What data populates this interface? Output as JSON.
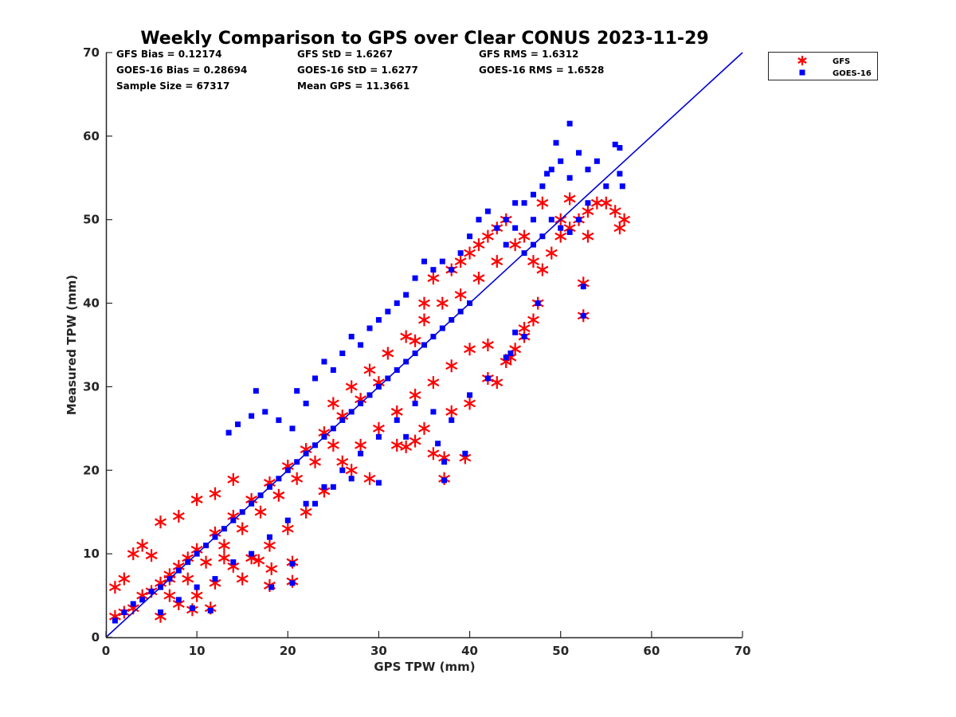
{
  "chart_data": {
    "type": "scatter",
    "title": "Weekly Comparison to GPS over Clear CONUS 2023-11-29",
    "xlabel": "GPS TPW (mm)",
    "ylabel": "Measured TPW (mm)",
    "xlim": [
      0,
      70
    ],
    "ylim": [
      0,
      70
    ],
    "xticks": [
      0,
      10,
      20,
      30,
      40,
      50,
      60,
      70
    ],
    "yticks": [
      0,
      10,
      20,
      30,
      40,
      50,
      60,
      70
    ],
    "grid": false,
    "legend_position": "outside-top-right",
    "stats": [
      [
        "GFS Bias = 0.12174",
        "GFS StD = 1.6267",
        "GFS RMS = 1.6312"
      ],
      [
        "GOES-16 Bias = 0.28694",
        "GOES-16 StD = 1.6277",
        "GOES-16 RMS = 1.6528"
      ],
      [
        "Sample Size = 67317",
        "Mean GPS = 11.3661",
        ""
      ]
    ],
    "reference_line": {
      "x": [
        0,
        70
      ],
      "y": [
        0,
        70
      ],
      "color": "#0000d8"
    },
    "series": [
      {
        "name": "GFS",
        "marker": "asterisk",
        "color": "#ff0000",
        "points": [
          [
            1,
            2.5
          ],
          [
            2,
            3
          ],
          [
            3,
            3.5
          ],
          [
            4,
            5
          ],
          [
            5,
            5.5
          ],
          [
            6,
            6.5
          ],
          [
            7,
            7.5
          ],
          [
            8,
            8.5
          ],
          [
            9,
            9.5
          ],
          [
            10,
            10.5
          ],
          [
            12,
            12.5
          ],
          [
            14,
            14.5
          ],
          [
            16,
            16.5
          ],
          [
            18,
            18.5
          ],
          [
            20,
            20.5
          ],
          [
            22,
            22.5
          ],
          [
            24,
            24.5
          ],
          [
            26,
            26.5
          ],
          [
            28,
            28.5
          ],
          [
            30,
            30.5
          ],
          [
            5,
            9.8
          ],
          [
            6,
            13.8
          ],
          [
            8,
            14.5
          ],
          [
            10,
            16.5
          ],
          [
            12,
            17.2
          ],
          [
            14,
            18.9
          ],
          [
            3,
            10
          ],
          [
            4,
            11
          ],
          [
            2,
            7
          ],
          [
            1,
            6
          ],
          [
            6,
            2.5
          ],
          [
            8,
            4
          ],
          [
            10,
            5
          ],
          [
            12,
            6.5
          ],
          [
            14,
            8.5
          ],
          [
            16,
            9.5
          ],
          [
            18,
            11
          ],
          [
            20,
            13
          ],
          [
            22,
            15
          ],
          [
            24,
            17.5
          ],
          [
            9.5,
            3.3
          ],
          [
            11.5,
            3.5
          ],
          [
            15,
            7
          ],
          [
            18,
            6.2
          ],
          [
            20.5,
            6.7
          ],
          [
            18.2,
            8.2
          ],
          [
            16.8,
            9.2
          ],
          [
            20.5,
            9
          ],
          [
            13,
            9.5
          ],
          [
            7,
            7
          ],
          [
            26,
            21
          ],
          [
            28,
            23
          ],
          [
            30,
            25
          ],
          [
            32,
            27
          ],
          [
            34,
            29
          ],
          [
            36,
            30.5
          ],
          [
            38,
            32.5
          ],
          [
            40,
            34.5
          ],
          [
            42,
            35
          ],
          [
            43,
            30.5
          ],
          [
            32,
            23
          ],
          [
            34,
            23.5
          ],
          [
            36,
            22
          ],
          [
            37.2,
            21.5
          ],
          [
            39.5,
            21.5
          ],
          [
            37.2,
            19
          ],
          [
            27,
            20
          ],
          [
            29,
            19
          ],
          [
            33,
            22.8
          ],
          [
            35,
            25
          ],
          [
            38,
            27
          ],
          [
            40,
            28
          ],
          [
            42,
            31
          ],
          [
            44,
            33
          ],
          [
            45,
            34.5
          ],
          [
            46,
            36
          ],
          [
            47,
            38
          ],
          [
            47.5,
            40
          ],
          [
            46,
            37
          ],
          [
            44.5,
            33.5
          ],
          [
            34,
            35.5
          ],
          [
            35,
            40
          ],
          [
            36,
            43
          ],
          [
            38,
            44
          ],
          [
            39,
            45
          ],
          [
            40,
            46
          ],
          [
            41,
            47
          ],
          [
            42,
            48
          ],
          [
            43,
            49
          ],
          [
            44,
            50
          ],
          [
            45,
            47
          ],
          [
            46,
            48
          ],
          [
            47,
            45
          ],
          [
            48,
            44
          ],
          [
            49,
            46
          ],
          [
            50,
            48
          ],
          [
            51,
            49
          ],
          [
            52,
            50
          ],
          [
            53,
            51
          ],
          [
            54,
            52
          ],
          [
            55,
            52
          ],
          [
            56,
            51
          ],
          [
            56.5,
            49
          ],
          [
            57,
            50
          ],
          [
            53,
            48
          ],
          [
            51,
            52.5
          ],
          [
            52.5,
            42.4
          ],
          [
            52.5,
            38.5
          ],
          [
            48,
            52
          ],
          [
            50,
            50
          ],
          [
            25,
            28
          ],
          [
            27,
            30
          ],
          [
            29,
            32
          ],
          [
            31,
            34
          ],
          [
            33,
            36
          ],
          [
            35,
            38
          ],
          [
            37,
            40
          ],
          [
            39,
            41
          ],
          [
            41,
            43
          ],
          [
            43,
            45
          ],
          [
            21,
            19
          ],
          [
            23,
            21
          ],
          [
            25,
            23
          ],
          [
            19,
            17
          ],
          [
            17,
            15
          ],
          [
            15,
            13
          ],
          [
            13,
            11
          ],
          [
            11,
            9
          ],
          [
            9,
            7
          ],
          [
            7,
            5
          ]
        ]
      },
      {
        "name": "GOES-16",
        "marker": "square",
        "color": "#0000ff",
        "points": [
          [
            1,
            2
          ],
          [
            2,
            3
          ],
          [
            3,
            4
          ],
          [
            4,
            4.5
          ],
          [
            5,
            5.5
          ],
          [
            6,
            6
          ],
          [
            7,
            7
          ],
          [
            8,
            8
          ],
          [
            9,
            9
          ],
          [
            10,
            10
          ],
          [
            11,
            11
          ],
          [
            12,
            12
          ],
          [
            13,
            13
          ],
          [
            14,
            14
          ],
          [
            15,
            15
          ],
          [
            16,
            16
          ],
          [
            17,
            17
          ],
          [
            18,
            18
          ],
          [
            19,
            19
          ],
          [
            20,
            20
          ],
          [
            21,
            21
          ],
          [
            22,
            22
          ],
          [
            23,
            23
          ],
          [
            24,
            24
          ],
          [
            25,
            25
          ],
          [
            26,
            26
          ],
          [
            27,
            27
          ],
          [
            28,
            28
          ],
          [
            29,
            29
          ],
          [
            30,
            30
          ],
          [
            31,
            31
          ],
          [
            32,
            32
          ],
          [
            33,
            33
          ],
          [
            34,
            34
          ],
          [
            35,
            35
          ],
          [
            36,
            36
          ],
          [
            37,
            37
          ],
          [
            38,
            38
          ],
          [
            39,
            39
          ],
          [
            40,
            40
          ],
          [
            13.5,
            24.5
          ],
          [
            14.5,
            25.5
          ],
          [
            16,
            26.5
          ],
          [
            16.5,
            29.5
          ],
          [
            17.5,
            27
          ],
          [
            19,
            26
          ],
          [
            20.5,
            25
          ],
          [
            21,
            29.5
          ],
          [
            22,
            28
          ],
          [
            23,
            31
          ],
          [
            24,
            33
          ],
          [
            25,
            32
          ],
          [
            26,
            34
          ],
          [
            27,
            36
          ],
          [
            28,
            35
          ],
          [
            29,
            37
          ],
          [
            30,
            38
          ],
          [
            31,
            39
          ],
          [
            32,
            40
          ],
          [
            33,
            41
          ],
          [
            34,
            43
          ],
          [
            35,
            45
          ],
          [
            36,
            44
          ],
          [
            37,
            45
          ],
          [
            38,
            44
          ],
          [
            39,
            46
          ],
          [
            40,
            48
          ],
          [
            41,
            50
          ],
          [
            42,
            51
          ],
          [
            43,
            49
          ],
          [
            44,
            50
          ],
          [
            45,
            52
          ],
          [
            46,
            52
          ],
          [
            47,
            53
          ],
          [
            48,
            54
          ],
          [
            49,
            56
          ],
          [
            50,
            57
          ],
          [
            51,
            55
          ],
          [
            52,
            58
          ],
          [
            53,
            56
          ],
          [
            54,
            57
          ],
          [
            55,
            54
          ],
          [
            56,
            59
          ],
          [
            56.5,
            58.6
          ],
          [
            56.5,
            55.5
          ],
          [
            56.8,
            54
          ],
          [
            49.5,
            59.2
          ],
          [
            51,
            61.5
          ],
          [
            48.5,
            55.5
          ],
          [
            47,
            50
          ],
          [
            44,
            47
          ],
          [
            45,
            49
          ],
          [
            46,
            46
          ],
          [
            47,
            47
          ],
          [
            48,
            48
          ],
          [
            49,
            50
          ],
          [
            50,
            49
          ],
          [
            51,
            48.5
          ],
          [
            52,
            50
          ],
          [
            53,
            52
          ],
          [
            6,
            3
          ],
          [
            8,
            4.5
          ],
          [
            10,
            6
          ],
          [
            12,
            7
          ],
          [
            14,
            9
          ],
          [
            16,
            10
          ],
          [
            18,
            12
          ],
          [
            20,
            14
          ],
          [
            22,
            16
          ],
          [
            24,
            18
          ],
          [
            26,
            20
          ],
          [
            28,
            22
          ],
          [
            30,
            24
          ],
          [
            32,
            26
          ],
          [
            34,
            28
          ],
          [
            36,
            27
          ],
          [
            38,
            26
          ],
          [
            40,
            29
          ],
          [
            42,
            31
          ],
          [
            44,
            33.5
          ],
          [
            9.5,
            3.5
          ],
          [
            11.5,
            3.2
          ],
          [
            18.2,
            6
          ],
          [
            20.5,
            6.5
          ],
          [
            20.5,
            8.8
          ],
          [
            23,
            16
          ],
          [
            25,
            18
          ],
          [
            27,
            19
          ],
          [
            30,
            18.5
          ],
          [
            33,
            24
          ],
          [
            37.2,
            18.8
          ],
          [
            37.2,
            21
          ],
          [
            39.5,
            22
          ],
          [
            36.5,
            23.2
          ],
          [
            46,
            36
          ],
          [
            45,
            36.5
          ],
          [
            52.5,
            38.5
          ],
          [
            52.5,
            42
          ],
          [
            47.5,
            40
          ],
          [
            44.5,
            34
          ]
        ]
      }
    ]
  }
}
